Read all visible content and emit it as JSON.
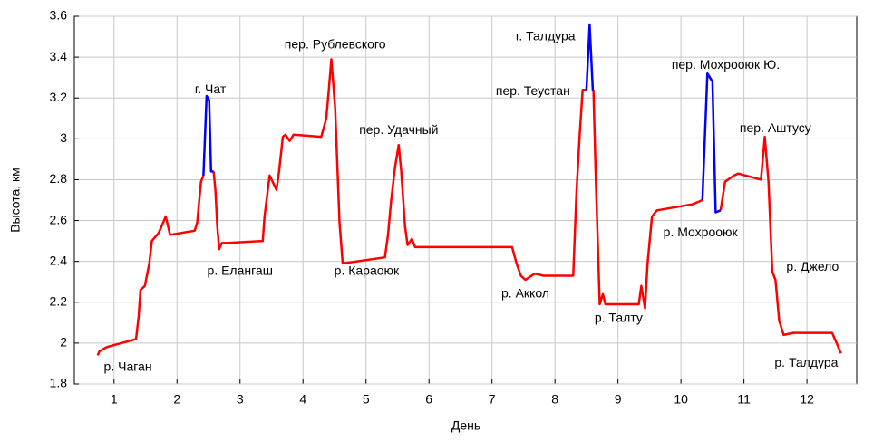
{
  "chart_data": {
    "type": "line",
    "xlabel": "День",
    "ylabel": "Высота, км",
    "xlim": [
      0.37,
      12.79
    ],
    "ylim": [
      1.8,
      3.6
    ],
    "xticks": [
      1,
      2,
      3,
      4,
      5,
      6,
      7,
      8,
      9,
      10,
      11,
      12
    ],
    "yticks": [
      1.8,
      2,
      2.2,
      2.4,
      2.6,
      2.8,
      3,
      3.2,
      3.4,
      3.6
    ],
    "grid": true,
    "series": [
      {
        "color": "#ff0000",
        "x": [
          0.74,
          0.77,
          0.88,
          1.35,
          1.39,
          1.42,
          1.49,
          1.56,
          1.6,
          1.71,
          1.78,
          1.82,
          1.89,
          2.28,
          2.32,
          2.38,
          2.42,
          null,
          2.58,
          2.61,
          2.64,
          2.67,
          2.71,
          2.78,
          3.36,
          3.39,
          3.47,
          3.58,
          3.62,
          3.68,
          3.72,
          3.79,
          3.85,
          4.29,
          4.37,
          4.41,
          4.45,
          4.51,
          4.58,
          4.63,
          5.3,
          5.35,
          5.4,
          5.46,
          5.52,
          5.56,
          5.62,
          5.66,
          5.73,
          5.78,
          7.32,
          7.39,
          7.46,
          7.53,
          7.68,
          7.82,
          8.29,
          8.34,
          8.39,
          8.44,
          8.5,
          null,
          8.61,
          8.65,
          8.71,
          8.76,
          8.8,
          9.33,
          9.37,
          9.43,
          9.47,
          9.54,
          9.62,
          10.19,
          10.34,
          null,
          10.63,
          10.7,
          10.84,
          10.91,
          11.27,
          11.33,
          11.39,
          11.45,
          11.5,
          11.56,
          11.63,
          11.78,
          12.4,
          12.5,
          12.54
        ],
        "values": [
          1.94,
          1.96,
          1.98,
          2.02,
          2.13,
          2.26,
          2.28,
          2.39,
          2.5,
          2.54,
          2.59,
          2.62,
          2.53,
          2.55,
          2.59,
          2.79,
          2.82,
          null,
          2.84,
          2.75,
          2.57,
          2.46,
          2.49,
          2.49,
          2.5,
          2.62,
          2.82,
          2.75,
          2.84,
          3.01,
          3.02,
          2.99,
          3.02,
          3.01,
          3.1,
          3.24,
          3.39,
          3.15,
          2.59,
          2.39,
          2.42,
          2.53,
          2.7,
          2.86,
          2.97,
          2.84,
          2.57,
          2.48,
          2.51,
          2.47,
          2.47,
          2.39,
          2.33,
          2.31,
          2.34,
          2.33,
          2.33,
          2.73,
          3.01,
          3.24,
          3.24,
          null,
          3.24,
          2.79,
          2.19,
          2.24,
          2.19,
          2.19,
          2.28,
          2.17,
          2.39,
          2.62,
          2.65,
          2.68,
          2.7,
          null,
          2.65,
          2.79,
          2.82,
          2.83,
          2.8,
          3.01,
          2.79,
          2.35,
          2.31,
          2.11,
          2.04,
          2.05,
          2.05,
          1.98,
          1.95
        ]
      },
      {
        "color": "#0000ff",
        "x": [
          2.42,
          2.47,
          2.51,
          2.54,
          2.57,
          2.58,
          null,
          8.5,
          8.55,
          8.6,
          8.61,
          null,
          10.34,
          10.42,
          10.5,
          10.55,
          10.63
        ],
        "values": [
          2.82,
          3.21,
          3.19,
          2.84,
          2.84,
          2.84,
          null,
          3.24,
          3.56,
          3.24,
          3.24,
          null,
          2.7,
          3.32,
          3.28,
          2.64,
          2.65
        ]
      }
    ],
    "annotations": [
      {
        "text": "р. Чаган",
        "x": 1.22,
        "y": 1.88
      },
      {
        "text": "г. Чат",
        "x": 2.53,
        "y": 3.24
      },
      {
        "text": "пер. Рублевского",
        "x": 4.51,
        "y": 3.46
      },
      {
        "text": "р. Елангаш",
        "x": 3.0,
        "y": 2.35
      },
      {
        "text": "пер. Удачный",
        "x": 5.52,
        "y": 3.04
      },
      {
        "text": "р. Караоюк",
        "x": 5.01,
        "y": 2.35
      },
      {
        "text": "р. Аккол",
        "x": 7.53,
        "y": 2.24
      },
      {
        "text": "г. Талдура",
        "x": 7.85,
        "y": 3.5
      },
      {
        "text": "пер. Теустан",
        "x": 7.65,
        "y": 3.23
      },
      {
        "text": "р. Талту",
        "x": 9.01,
        "y": 2.12
      },
      {
        "text": "пер. Мохрооюк Ю.",
        "x": 10.71,
        "y": 3.36
      },
      {
        "text": "р. Мохрооюк",
        "x": 10.31,
        "y": 2.54
      },
      {
        "text": "пер. Аштусу",
        "x": 11.5,
        "y": 3.05
      },
      {
        "text": "р. Джело",
        "x": 12.09,
        "y": 2.37
      },
      {
        "text": "р. Талдура",
        "x": 11.99,
        "y": 1.9
      }
    ]
  }
}
